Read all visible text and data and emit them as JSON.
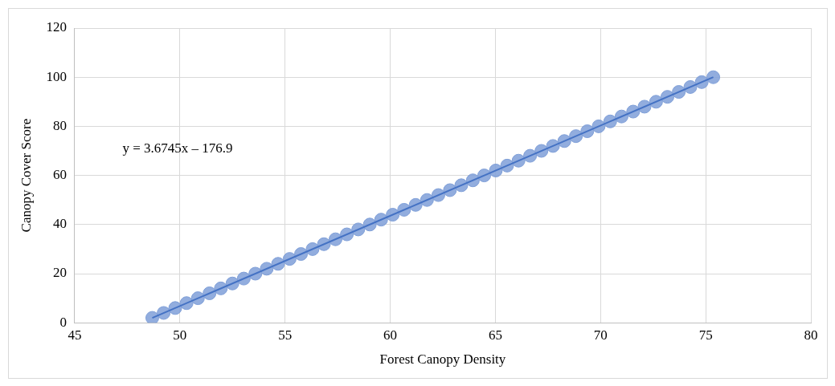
{
  "chart_data": {
    "type": "scatter",
    "xlabel": "Forest Canopy Density",
    "ylabel": "Canopy Cover Score",
    "xlim": [
      45,
      80
    ],
    "xticks": [
      45,
      50,
      55,
      60,
      65,
      70,
      75,
      80
    ],
    "ylim": [
      0,
      120
    ],
    "yticks": [
      0,
      20,
      40,
      60,
      80,
      100,
      120
    ],
    "grid": true,
    "annotations": [
      "y = 3.6745x – 176.9"
    ],
    "series": [
      {
        "marker": "circle",
        "color": "#7f9fd8",
        "x": [
          48.69,
          49.23,
          49.78,
          50.32,
          50.86,
          51.41,
          51.95,
          52.5,
          53.04,
          53.59,
          54.13,
          54.67,
          55.22,
          55.76,
          56.31,
          56.85,
          57.4,
          57.94,
          58.48,
          59.03,
          59.57,
          60.12,
          60.66,
          61.21,
          61.75,
          62.29,
          62.84,
          63.38,
          63.93,
          64.47,
          65.02,
          65.56,
          66.1,
          66.65,
          67.19,
          67.74,
          68.28,
          68.83,
          69.37,
          69.91,
          70.46,
          71.0,
          71.55,
          72.09,
          72.64,
          73.18,
          73.72,
          74.27,
          74.81,
          75.36
        ],
        "values": [
          2,
          4,
          6,
          8,
          10,
          12,
          14,
          16,
          18,
          20,
          22,
          24,
          26,
          28,
          30,
          32,
          34,
          36,
          38,
          40,
          42,
          44,
          46,
          48,
          50,
          52,
          54,
          56,
          58,
          60,
          62,
          64,
          66,
          68,
          70,
          72,
          74,
          76,
          78,
          80,
          82,
          84,
          86,
          88,
          90,
          92,
          94,
          96,
          98,
          100
        ]
      },
      {
        "type": "line",
        "marker": "none",
        "color": "#4472c4",
        "line_style": "solid",
        "x": [
          48.69,
          75.36
        ],
        "values": [
          2,
          100
        ]
      }
    ]
  }
}
